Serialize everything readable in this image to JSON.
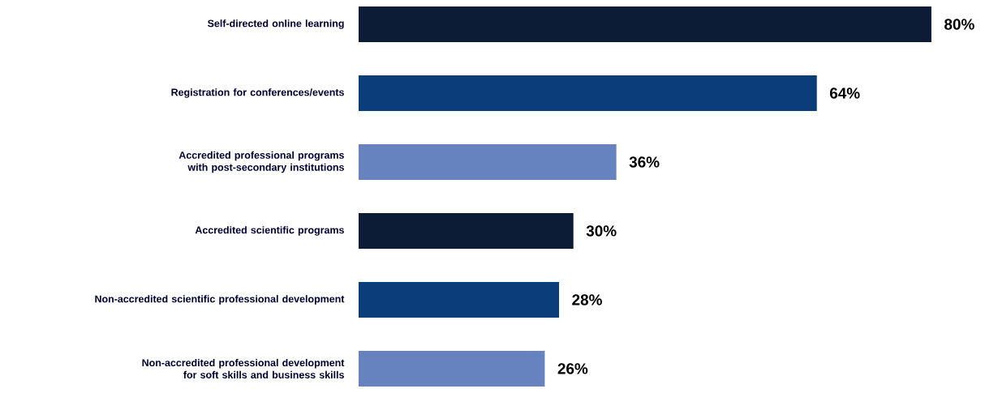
{
  "chart_data": {
    "type": "bar",
    "orientation": "horizontal",
    "categories": [
      "Self-directed online learning",
      "Registration for conferences/events",
      "Accredited professional programs with post-secondary institutions",
      "Accredited scientific programs",
      "Non-accredited scientific professional development",
      "Non-accredited professional development for soft skills and business skills"
    ],
    "values": [
      80,
      64,
      36,
      30,
      28,
      26
    ],
    "value_labels": [
      "80%",
      "64%",
      "36%",
      "30%",
      "28%",
      "26%"
    ],
    "colors": [
      "#0c1b36",
      "#0a3d7a",
      "#6683c0",
      "#0c1b36",
      "#0a3d7a",
      "#6683c0"
    ]
  }
}
